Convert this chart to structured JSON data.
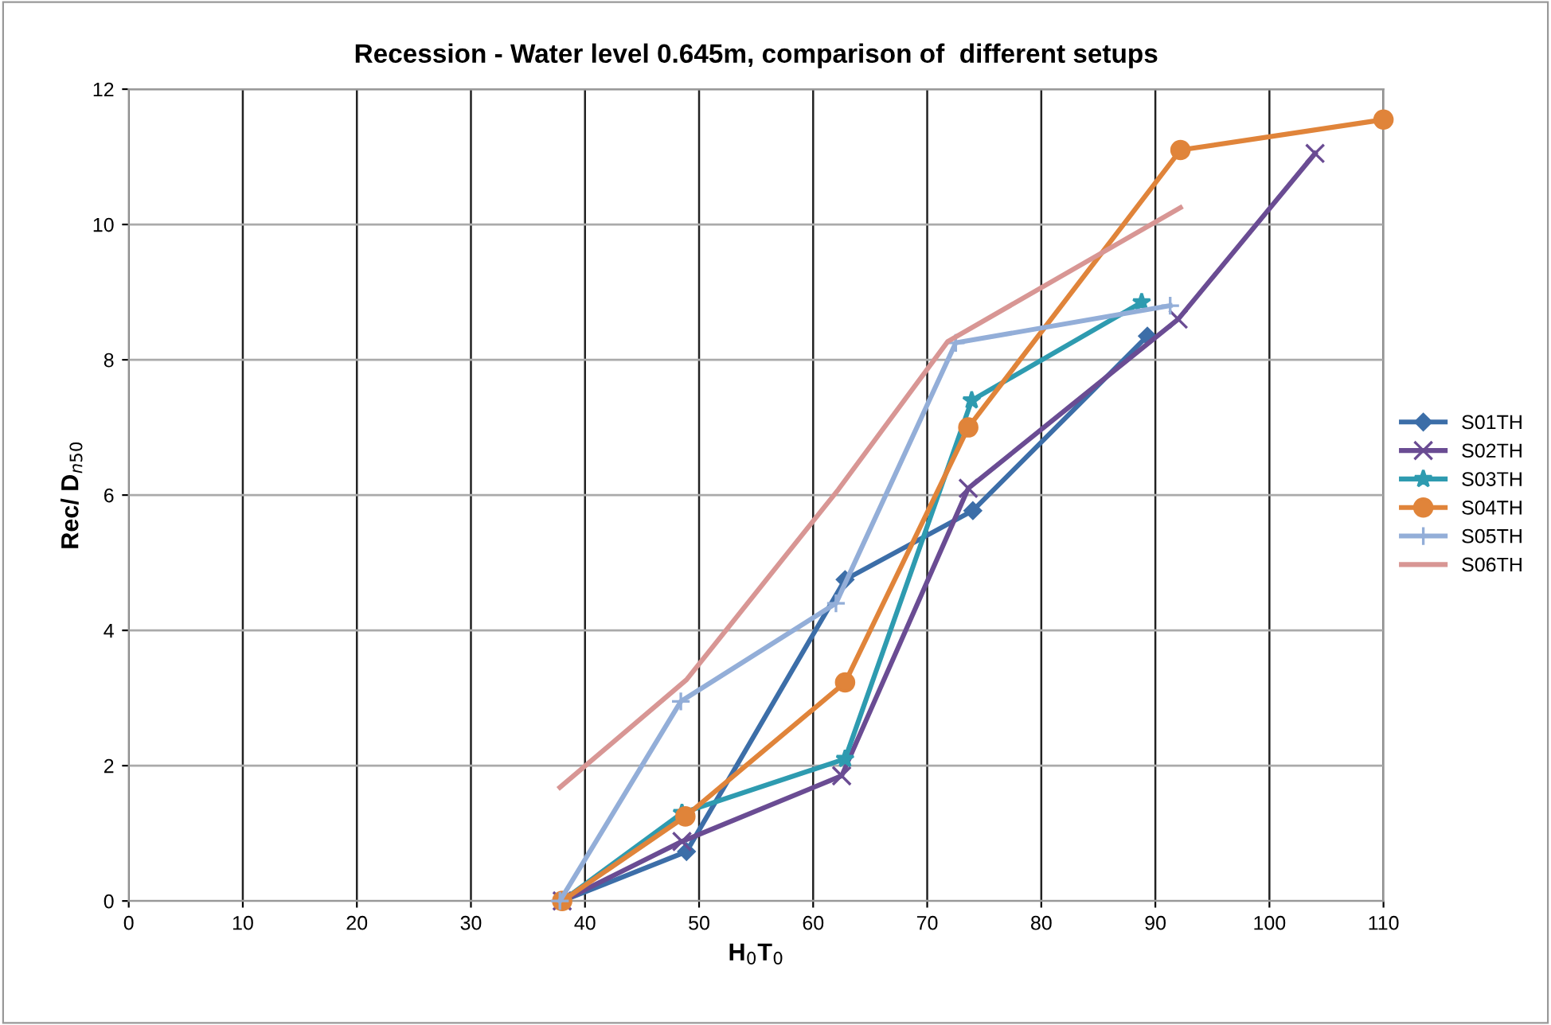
{
  "chart_data": {
    "type": "line",
    "title": "Recession - Water level 0.645m, comparison of  different setups",
    "xlabel": "H$_{0}$T$_{0}$",
    "ylabel": "Rec/ D$_{n50}$",
    "xlim": [
      0,
      110
    ],
    "xticks": [
      0,
      10,
      20,
      30,
      40,
      50,
      60,
      70,
      80,
      90,
      100,
      110
    ],
    "ylim": [
      0,
      12
    ],
    "yticks": [
      0,
      2,
      4,
      6,
      8,
      10,
      12
    ],
    "grid": true,
    "legend": "right",
    "series": [
      {
        "name": "S01TH",
        "color": "#3c6ea8",
        "marker": "diamond",
        "x": [
          38,
          48.9,
          62.8,
          74,
          89.3
        ],
        "values": [
          0,
          0.73,
          4.75,
          5.77,
          8.35
        ]
      },
      {
        "name": "S02TH",
        "color": "#6a4c93",
        "marker": "cross",
        "x": [
          38,
          48.5,
          62.5,
          73.6,
          92,
          104
        ],
        "values": [
          0,
          0.88,
          1.85,
          6.1,
          8.6,
          11.05
        ]
      },
      {
        "name": "S03TH",
        "color": "#2e9bb0",
        "marker": "star",
        "x": [
          38,
          48.5,
          62.8,
          73.9,
          88.8
        ],
        "values": [
          0,
          1.3,
          2.1,
          7.4,
          8.85
        ]
      },
      {
        "name": "S04TH",
        "color": "#e0843a",
        "marker": "circle",
        "x": [
          38,
          48.8,
          62.8,
          73.6,
          92.2,
          110
        ],
        "values": [
          0,
          1.25,
          3.23,
          7.0,
          11.1,
          11.55
        ]
      },
      {
        "name": "S05TH",
        "color": "#93aed8",
        "marker": "plus",
        "x": [
          37.8,
          48.4,
          62,
          72.5,
          91.3
        ],
        "values": [
          0,
          2.95,
          4.4,
          8.25,
          8.8
        ]
      },
      {
        "name": "S06TH",
        "color": "#d89694",
        "marker": "none",
        "x": [
          37.8,
          48.9,
          62.2,
          71.8,
          92.2
        ],
        "values": [
          1.68,
          3.27,
          6.08,
          8.27,
          10.25
        ]
      }
    ]
  }
}
